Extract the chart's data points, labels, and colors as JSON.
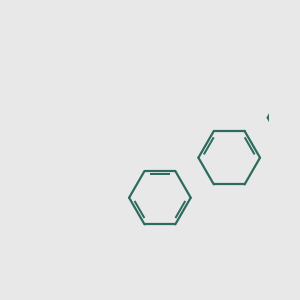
{
  "bg_color": "#e8e8e8",
  "bond_color_ring": "#2d6b5e",
  "bond_color_N_top": "#4a9a3a",
  "bond_color_N_bot": "#2222cc",
  "bond_color_O": "#cc2222",
  "bond_color_Br": "#cc8822",
  "bond_color_Cl": "#44aa22",
  "lw": 1.6,
  "atom_N_top_color": "#4a9a3a",
  "atom_N_bot_color": "#2222cc",
  "atom_O_color": "#cc2222",
  "atom_Br_color": "#cc8822",
  "atom_Cl_color": "#44aa22"
}
